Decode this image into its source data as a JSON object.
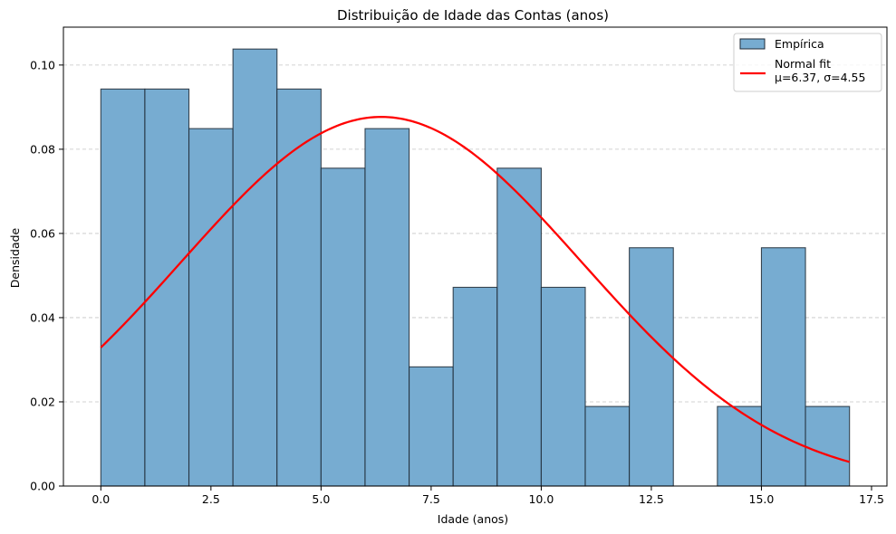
{
  "chart_data": {
    "type": "bar",
    "title": "Distribuição de Idade das Contas (anos)",
    "xlabel": "Idade (anos)",
    "ylabel": "Densidade",
    "xlim": [
      -0.85,
      17.85
    ],
    "ylim": [
      0,
      0.109
    ],
    "x_ticks": [
      0.0,
      2.5,
      5.0,
      7.5,
      10.0,
      12.5,
      15.0,
      17.5
    ],
    "x_tick_labels": [
      "0.0",
      "2.5",
      "5.0",
      "7.5",
      "10.0",
      "12.5",
      "15.0",
      "17.5"
    ],
    "y_ticks": [
      0.0,
      0.02,
      0.04,
      0.06,
      0.08,
      0.1
    ],
    "y_tick_labels": [
      "0.00",
      "0.02",
      "0.04",
      "0.06",
      "0.08",
      "0.10"
    ],
    "grid": "y-dashed",
    "legend_position": "top-right",
    "series": [
      {
        "name": "Empírica",
        "kind": "histogram",
        "color": "#77acd1",
        "edge_color": "#1f2a36",
        "bin_edges": [
          0,
          1,
          2,
          3,
          4,
          5,
          6,
          7,
          8,
          9,
          10,
          11,
          12,
          13,
          14,
          15,
          16,
          17
        ],
        "values": [
          0.0943,
          0.0943,
          0.0849,
          0.1038,
          0.0943,
          0.0755,
          0.0849,
          0.0283,
          0.0472,
          0.0755,
          0.0472,
          0.0189,
          0.0566,
          0.0,
          0.0189,
          0.0566,
          0.0189
        ]
      },
      {
        "name": "Normal fit\nμ=6.37, σ=4.55",
        "legend_lines": [
          "Normal fit",
          "μ=6.37, σ=4.55"
        ],
        "kind": "line",
        "color": "#ff0000",
        "mu": 6.37,
        "sigma": 4.55,
        "x_range": [
          0,
          17
        ]
      }
    ]
  }
}
